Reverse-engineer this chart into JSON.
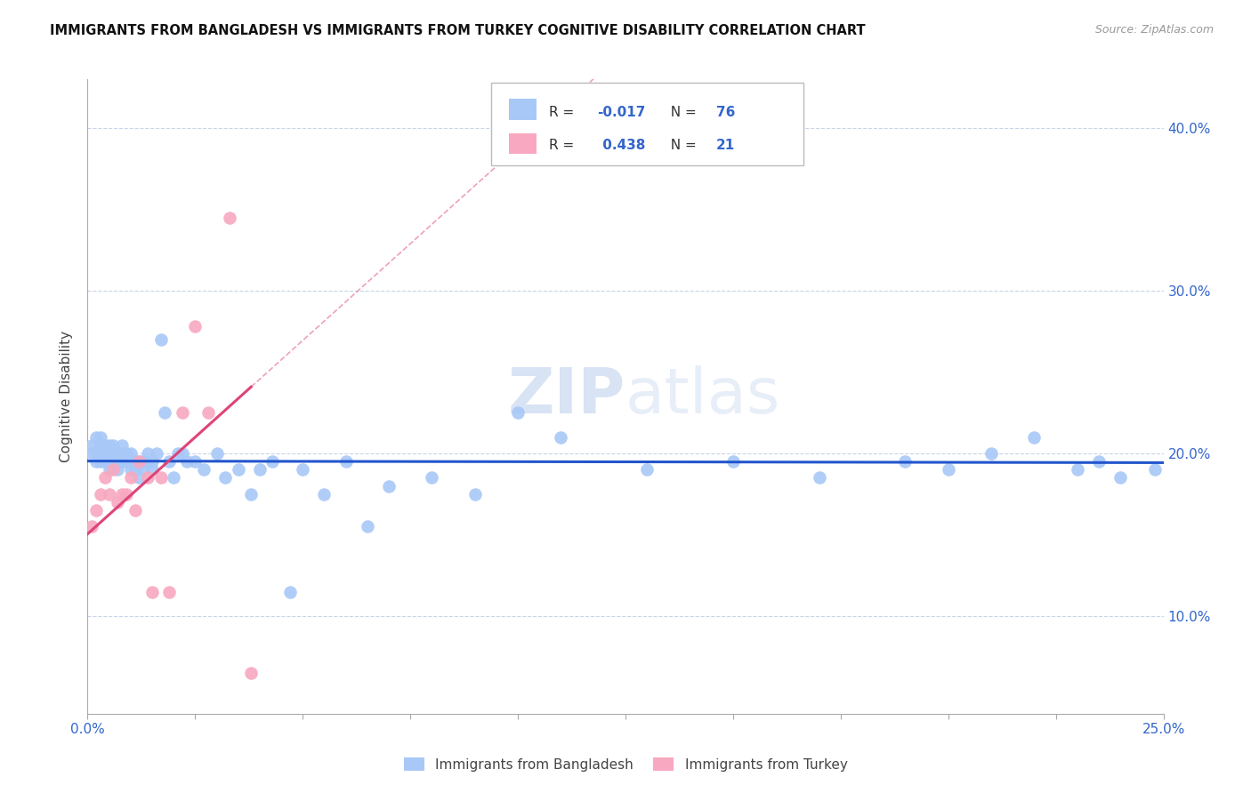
{
  "title": "IMMIGRANTS FROM BANGLADESH VS IMMIGRANTS FROM TURKEY COGNITIVE DISABILITY CORRELATION CHART",
  "source": "Source: ZipAtlas.com",
  "ylabel": "Cognitive Disability",
  "legend_1_label": "Immigrants from Bangladesh",
  "legend_2_label": "Immigrants from Turkey",
  "r1": "-0.017",
  "n1": "76",
  "r2": "0.438",
  "n2": "21",
  "blue_color": "#a8c8f8",
  "pink_color": "#f8a8c0",
  "blue_line_color": "#2255cc",
  "pink_line_color": "#dd4477",
  "xlim": [
    0.0,
    0.25
  ],
  "ylim": [
    0.04,
    0.43
  ],
  "x_tick_positions": [
    0.0,
    0.025,
    0.05,
    0.075,
    0.1,
    0.125,
    0.15,
    0.175,
    0.2,
    0.225,
    0.25
  ],
  "y_ticks": [
    0.1,
    0.2,
    0.3,
    0.4
  ],
  "bangladesh_x": [
    0.001,
    0.001,
    0.002,
    0.002,
    0.002,
    0.003,
    0.003,
    0.003,
    0.003,
    0.004,
    0.004,
    0.004,
    0.005,
    0.005,
    0.005,
    0.005,
    0.006,
    0.006,
    0.006,
    0.007,
    0.007,
    0.007,
    0.008,
    0.008,
    0.008,
    0.009,
    0.009,
    0.01,
    0.01,
    0.01,
    0.011,
    0.011,
    0.012,
    0.012,
    0.013,
    0.013,
    0.014,
    0.015,
    0.015,
    0.016,
    0.017,
    0.018,
    0.019,
    0.02,
    0.021,
    0.022,
    0.023,
    0.025,
    0.027,
    0.03,
    0.032,
    0.035,
    0.038,
    0.04,
    0.043,
    0.047,
    0.05,
    0.055,
    0.06,
    0.065,
    0.07,
    0.08,
    0.09,
    0.1,
    0.11,
    0.13,
    0.15,
    0.17,
    0.19,
    0.2,
    0.21,
    0.22,
    0.23,
    0.235,
    0.24,
    0.248
  ],
  "bangladesh_y": [
    0.2,
    0.205,
    0.195,
    0.2,
    0.21,
    0.195,
    0.2,
    0.205,
    0.21,
    0.195,
    0.2,
    0.205,
    0.19,
    0.195,
    0.2,
    0.205,
    0.195,
    0.2,
    0.205,
    0.19,
    0.195,
    0.2,
    0.195,
    0.2,
    0.205,
    0.195,
    0.2,
    0.19,
    0.195,
    0.2,
    0.19,
    0.195,
    0.185,
    0.195,
    0.19,
    0.195,
    0.2,
    0.19,
    0.195,
    0.2,
    0.27,
    0.225,
    0.195,
    0.185,
    0.2,
    0.2,
    0.195,
    0.195,
    0.19,
    0.2,
    0.185,
    0.19,
    0.175,
    0.19,
    0.195,
    0.115,
    0.19,
    0.175,
    0.195,
    0.155,
    0.18,
    0.185,
    0.175,
    0.225,
    0.21,
    0.19,
    0.195,
    0.185,
    0.195,
    0.19,
    0.2,
    0.21,
    0.19,
    0.195,
    0.185,
    0.19
  ],
  "turkey_x": [
    0.001,
    0.002,
    0.003,
    0.004,
    0.005,
    0.006,
    0.007,
    0.008,
    0.009,
    0.01,
    0.011,
    0.012,
    0.014,
    0.015,
    0.017,
    0.019,
    0.022,
    0.025,
    0.028,
    0.033,
    0.038
  ],
  "turkey_y": [
    0.155,
    0.165,
    0.175,
    0.185,
    0.175,
    0.19,
    0.17,
    0.175,
    0.175,
    0.185,
    0.165,
    0.195,
    0.185,
    0.115,
    0.185,
    0.115,
    0.225,
    0.278,
    0.225,
    0.345,
    0.065
  ]
}
